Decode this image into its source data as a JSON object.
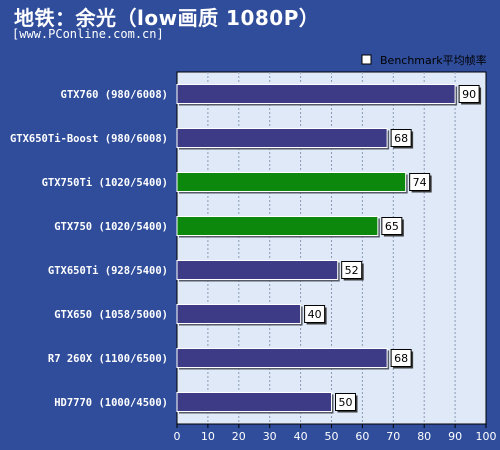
{
  "chart_data": {
    "type": "bar",
    "orientation": "horizontal",
    "title": "地铁：余光（low画质 1080P）",
    "subtitle": "[www.PConline.com.cn]",
    "legend": {
      "label": "Benchmark平均帧率",
      "placement": "top-right"
    },
    "categories": [
      "GTX760 (980/6008)",
      "GTX650Ti-Boost (980/6008)",
      "GTX750Ti (1020/5400)",
      "GTX750 (1020/5400)",
      "GTX650Ti (928/5400)",
      "GTX650 (1058/5000)",
      "R7 260X (1100/6500)",
      "HD7770 (1000/4500)"
    ],
    "values": [
      90,
      68,
      74,
      65,
      52,
      40,
      68,
      50
    ],
    "highlight": [
      false,
      false,
      true,
      true,
      false,
      false,
      false,
      false
    ],
    "xlim": [
      0,
      100
    ],
    "xticks": [
      0,
      10,
      20,
      30,
      40,
      50,
      60,
      70,
      80,
      90,
      100
    ],
    "grid": "vertical dashed",
    "colors": {
      "background": "#2f4d9b",
      "plot_area": "#dfe9f8",
      "bar_default": "#3d3b86",
      "bar_highlight": "#0c880c"
    }
  }
}
